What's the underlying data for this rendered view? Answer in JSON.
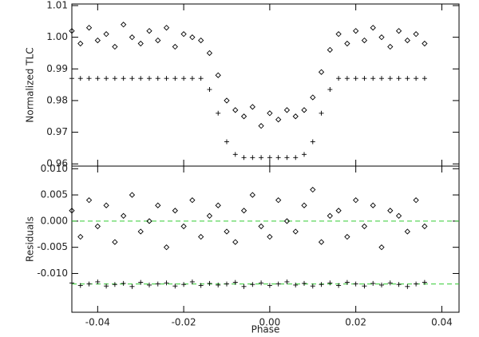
{
  "chart_data": [
    {
      "type": "scatter",
      "ylabel": "Normalized TLC",
      "xlim": [
        -0.046,
        0.044
      ],
      "xticks": [
        -0.04,
        -0.02,
        {
          "value": 0,
          "label": "0.00"
        },
        0.02,
        0.04
      ],
      "ylim": [
        0.9593,
        1.0105
      ],
      "yticks": [
        0.96,
        0.97,
        0.98,
        0.99,
        {
          "value": 1,
          "label": "1.00"
        },
        1.01
      ],
      "x": [
        -0.046,
        -0.044,
        -0.042,
        -0.04,
        -0.038,
        -0.036,
        -0.034,
        -0.032,
        -0.03,
        -0.028,
        -0.026,
        -0.024,
        -0.022,
        -0.02,
        -0.018,
        -0.016,
        -0.014,
        -0.012,
        -0.01,
        -0.008,
        -0.006,
        -0.004,
        -0.002,
        0.0,
        0.002,
        0.004,
        0.006,
        0.008,
        0.01,
        0.012,
        0.014,
        0.016,
        0.018,
        0.02,
        0.022,
        0.024,
        0.026,
        0.028,
        0.03,
        0.032,
        0.034,
        0.036
      ],
      "series": [
        {
          "marker": "diamond",
          "color": "#000000",
          "values": [
            1.002,
            0.998,
            1.003,
            0.999,
            1.001,
            0.997,
            1.004,
            1.0,
            0.998,
            1.002,
            0.999,
            1.003,
            0.997,
            1.001,
            1.0,
            0.999,
            0.995,
            0.988,
            0.98,
            0.977,
            0.975,
            0.978,
            0.972,
            0.976,
            0.974,
            0.977,
            0.975,
            0.977,
            0.981,
            0.989,
            0.996,
            1.001,
            0.998,
            1.002,
            0.999,
            1.003,
            1.0,
            0.997,
            1.002,
            0.999,
            1.001,
            0.998
          ]
        },
        {
          "marker": "plus",
          "color": "#000000",
          "values": [
            0.987,
            0.987,
            0.987,
            0.987,
            0.987,
            0.987,
            0.987,
            0.987,
            0.987,
            0.987,
            0.987,
            0.987,
            0.987,
            0.987,
            0.987,
            0.987,
            0.9835,
            0.976,
            0.967,
            0.963,
            0.962,
            0.962,
            0.962,
            0.962,
            0.962,
            0.962,
            0.962,
            0.963,
            0.967,
            0.976,
            0.9835,
            0.987,
            0.987,
            0.987,
            0.987,
            0.987,
            0.987,
            0.987,
            0.987,
            0.987,
            0.987,
            0.987
          ]
        }
      ]
    },
    {
      "type": "scatter",
      "xlabel": "Phase",
      "ylabel": "Residuals",
      "xlim": [
        -0.046,
        0.044
      ],
      "xticks": [
        -0.04,
        -0.02,
        {
          "value": 0,
          "label": "0.00"
        },
        0.02,
        0.04
      ],
      "ylim": [
        -0.0174,
        0.0105
      ],
      "yticks": [
        {
          "value": 0.01,
          "label": "0.010"
        },
        0.005,
        {
          "value": 0,
          "label": "0.000"
        },
        -0.005,
        {
          "value": -0.01,
          "label": "-0.010"
        }
      ],
      "reference_lines": [
        0,
        -0.012
      ],
      "reference_color": "#33cc33",
      "x": [
        -0.046,
        -0.044,
        -0.042,
        -0.04,
        -0.038,
        -0.036,
        -0.034,
        -0.032,
        -0.03,
        -0.028,
        -0.026,
        -0.024,
        -0.022,
        -0.02,
        -0.018,
        -0.016,
        -0.014,
        -0.012,
        -0.01,
        -0.008,
        -0.006,
        -0.004,
        -0.002,
        0.0,
        0.002,
        0.004,
        0.006,
        0.008,
        0.01,
        0.012,
        0.014,
        0.016,
        0.018,
        0.02,
        0.022,
        0.024,
        0.026,
        0.028,
        0.03,
        0.032,
        0.034,
        0.036
      ],
      "series": [
        {
          "marker": "diamond",
          "color": "#000000",
          "values": [
            0.002,
            -0.003,
            0.004,
            -0.001,
            0.003,
            -0.004,
            0.001,
            0.005,
            -0.002,
            0.0,
            0.003,
            -0.005,
            0.002,
            -0.001,
            0.004,
            -0.003,
            0.001,
            0.003,
            -0.002,
            -0.004,
            0.002,
            0.005,
            -0.001,
            -0.003,
            0.004,
            0.0,
            -0.002,
            0.003,
            0.006,
            -0.004,
            0.001,
            0.002,
            -0.003,
            0.004,
            -0.001,
            0.003,
            -0.005,
            0.002,
            0.001,
            -0.002,
            0.004,
            -0.001
          ]
        },
        {
          "marker": "plus",
          "color": "#000000",
          "values": [
            -0.0118,
            -0.0123,
            -0.012,
            -0.0116,
            -0.0124,
            -0.0121,
            -0.0119,
            -0.0125,
            -0.0117,
            -0.0122,
            -0.012,
            -0.0118,
            -0.0124,
            -0.0121,
            -0.0116,
            -0.0123,
            -0.0119,
            -0.0122,
            -0.012,
            -0.0117,
            -0.0125,
            -0.0121,
            -0.0118,
            -0.0123,
            -0.012,
            -0.0116,
            -0.0122,
            -0.0119,
            -0.0124,
            -0.0121,
            -0.0118,
            -0.0123,
            -0.0117,
            -0.012,
            -0.0124,
            -0.0119,
            -0.0122,
            -0.0118,
            -0.0121,
            -0.0125,
            -0.012,
            -0.0117
          ]
        }
      ]
    }
  ]
}
